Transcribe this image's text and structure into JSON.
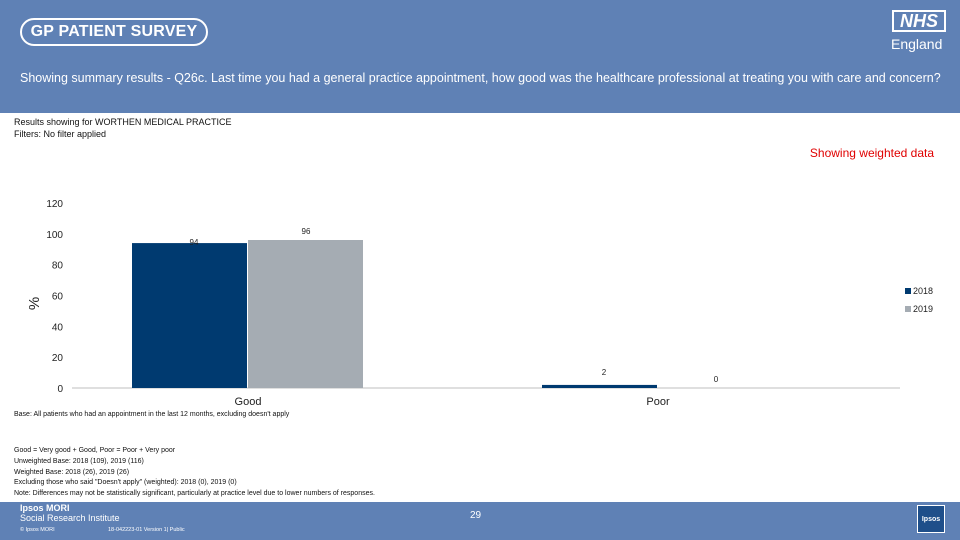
{
  "header": {
    "survey_logo": "GP PATIENT SURVEY",
    "nhs_logo": "NHS",
    "nhs_region": "England",
    "question": "Showing summary results - Q26c.  Last time you had a general practice appointment, how good was the healthcare professional at treating you with care and concern?"
  },
  "filters": {
    "results_for": "Results showing for WORTHEN MEDICAL PRACTICE",
    "filter_line": "Filters: No filter applied"
  },
  "weighted_label": "Showing weighted data",
  "colors": {
    "band": "#5f81b5",
    "series_2018": "#003a70",
    "series_2019": "#a5acb3",
    "weighted_text": "#e00000"
  },
  "chart_data": {
    "type": "bar",
    "ylabel": "%",
    "ylim": [
      0,
      120
    ],
    "yticks": [
      0,
      20,
      40,
      60,
      80,
      100,
      120
    ],
    "categories": [
      "Good",
      "Poor"
    ],
    "series": [
      {
        "name": "2018",
        "values": [
          94,
          2
        ],
        "labels": [
          "94",
          "2"
        ]
      },
      {
        "name": "2019",
        "values": [
          96,
          0
        ],
        "labels": [
          "96",
          "0"
        ]
      }
    ],
    "legend_position": "right"
  },
  "base_note": "Base: All patients who had an appointment in the last 12 months, excluding doesn't apply",
  "footnotes": [
    "Good = Very good + Good, Poor = Poor + Very poor",
    "Unweighted Base: 2018 (109), 2019 (116)",
    "Weighted Base: 2018 (26), 2019 (26)",
    "Excluding those who said \"Doesn't apply\" (weighted): 2018 (0), 2019 (0)",
    "Note: Differences may not be statistically significant, particularly at practice level due to lower numbers of responses."
  ],
  "footer": {
    "brand": "Ipsos MORI",
    "brand_sub": "Social Research Institute",
    "copyright": "© Ipsos MORI",
    "docref": "18-042223-01 Version 1| Public",
    "page_number": "29",
    "ipsos_logo": "Ipsos"
  }
}
